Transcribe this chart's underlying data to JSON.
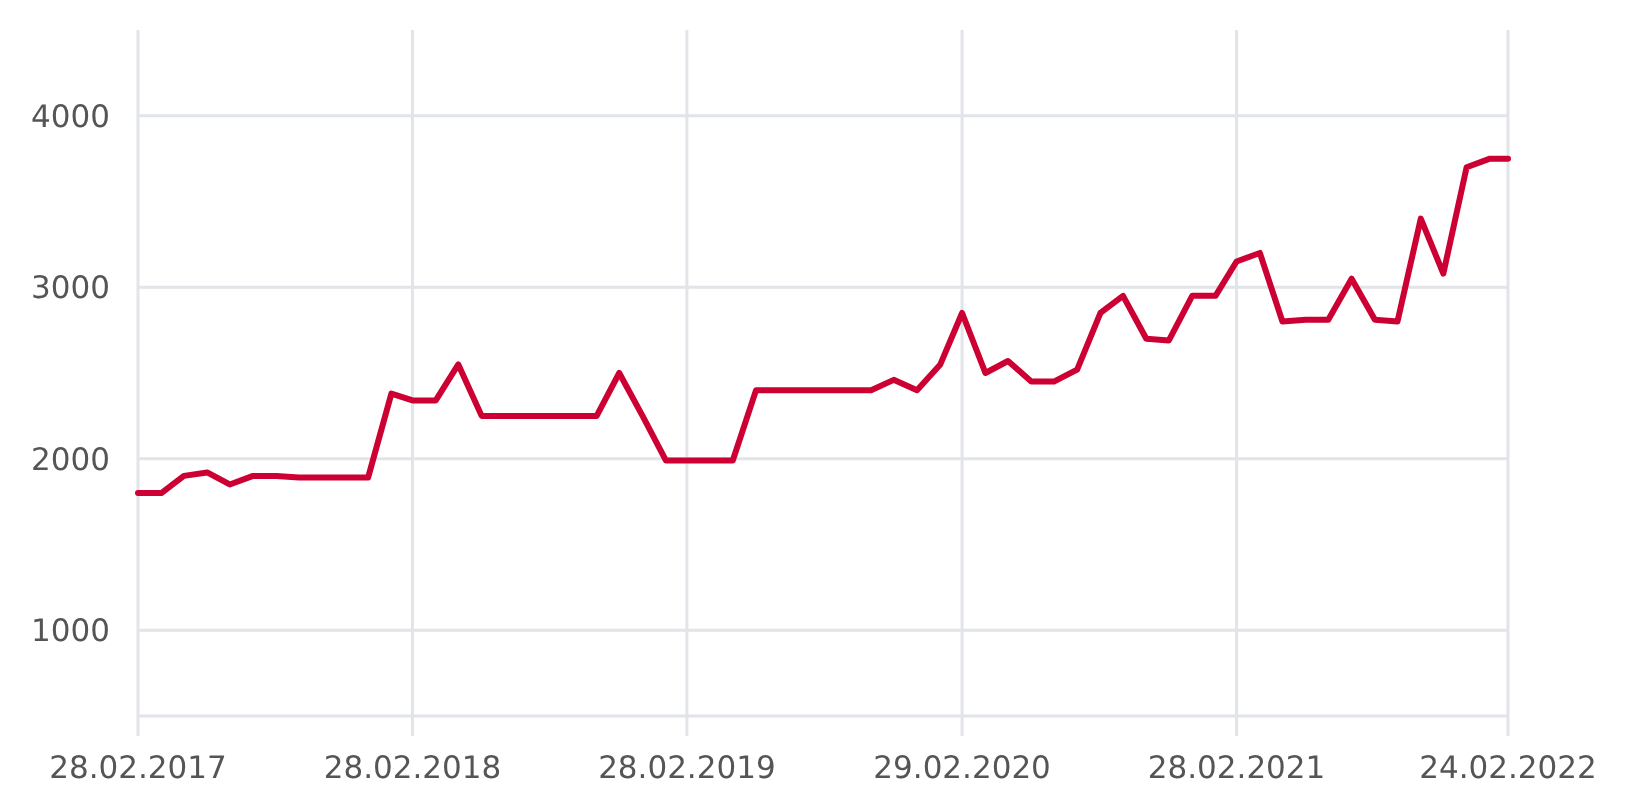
{
  "chart_data": {
    "type": "line",
    "color": "#cc0033",
    "x": [
      "2017-02-28",
      "2017-03-31",
      "2017-04-30",
      "2017-05-31",
      "2017-06-30",
      "2017-07-31",
      "2017-08-31",
      "2017-09-30",
      "2017-10-31",
      "2017-11-30",
      "2017-12-31",
      "2018-01-31",
      "2018-02-28",
      "2018-03-31",
      "2018-04-30",
      "2018-05-31",
      "2018-06-30",
      "2018-07-31",
      "2018-08-31",
      "2018-09-30",
      "2018-10-31",
      "2018-11-30",
      "2018-12-31",
      "2019-01-31",
      "2019-02-28",
      "2019-03-31",
      "2019-04-30",
      "2019-05-31",
      "2019-06-30",
      "2019-07-31",
      "2019-08-31",
      "2019-09-30",
      "2019-10-31",
      "2019-11-30",
      "2019-12-31",
      "2020-01-31",
      "2020-02-29",
      "2020-03-31",
      "2020-04-30",
      "2020-05-31",
      "2020-06-30",
      "2020-07-31",
      "2020-08-31",
      "2020-09-30",
      "2020-10-31",
      "2020-11-30",
      "2020-12-31",
      "2021-01-31",
      "2021-02-28",
      "2021-03-31",
      "2021-04-30",
      "2021-05-31",
      "2021-06-30",
      "2021-07-31",
      "2021-08-31",
      "2021-09-30",
      "2021-10-31",
      "2021-11-30",
      "2021-12-31",
      "2022-01-31",
      "2022-02-24"
    ],
    "values": [
      1800,
      1800,
      1900,
      1920,
      1850,
      1900,
      1900,
      1890,
      1890,
      1890,
      1890,
      2380,
      2340,
      2340,
      2550,
      2250,
      2250,
      2250,
      2250,
      2250,
      2250,
      2500,
      2250,
      1990,
      1990,
      1990,
      1990,
      2400,
      2400,
      2400,
      2400,
      2400,
      2400,
      2460,
      2400,
      2550,
      2850,
      2500,
      2570,
      2450,
      2450,
      2520,
      2850,
      2950,
      2700,
      2690,
      2950,
      2950,
      3150,
      3200,
      2800,
      2810,
      2810,
      3050,
      2810,
      2800,
      3400,
      3080,
      3700,
      3750,
      3750
    ],
    "xlim": [
      "2017-02-28",
      "2022-02-24"
    ],
    "xticks": [
      {
        "value": "2017-02-28",
        "label": "28.02.2017"
      },
      {
        "value": "2018-02-28",
        "label": "28.02.2018"
      },
      {
        "value": "2019-02-28",
        "label": "28.02.2019"
      },
      {
        "value": "2020-02-29",
        "label": "29.02.2020"
      },
      {
        "value": "2021-02-28",
        "label": "28.02.2021"
      },
      {
        "value": "2022-02-24",
        "label": "24.02.2022"
      }
    ],
    "ylim": [
      500,
      4500
    ],
    "yticks": [
      1000,
      2000,
      3000,
      4000
    ],
    "grid": true
  }
}
